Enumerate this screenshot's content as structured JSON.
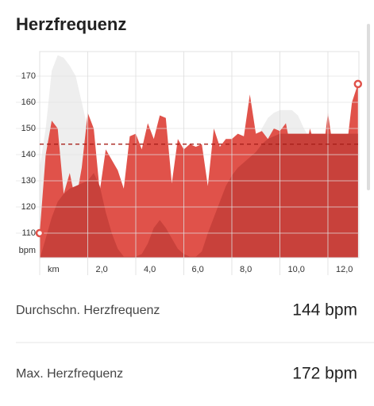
{
  "chart_data": {
    "type": "area",
    "title": "Herzfrequenz",
    "ylabel": "bpm",
    "x": [
      0,
      0.25,
      0.5,
      0.75,
      1,
      1.25,
      1.5,
      1.75,
      2,
      2.25,
      2.5,
      2.75,
      3,
      3.25,
      3.5,
      3.75,
      4,
      4.25,
      4.5,
      4.75,
      5,
      5.25,
      5.5,
      5.75,
      6,
      6.25,
      6.5,
      6.75,
      7,
      7.25,
      7.5,
      7.75,
      8,
      8.25,
      8.5,
      8.75,
      9,
      9.25,
      9.5,
      9.75,
      10,
      10.25,
      10.5,
      10.75,
      11,
      11.25,
      11.5,
      11.75,
      12,
      12.25,
      12.5,
      12.75,
      13,
      13.25
    ],
    "series": [
      {
        "color": "#eeeeee",
        "values": [
          135,
          150,
          172,
          178,
          177,
          174,
          170,
          160,
          150,
          140,
          125,
          115,
          108,
          104,
          102,
          102,
          102,
          102,
          102,
          102,
          102,
          102,
          102,
          102,
          102,
          102,
          102,
          104,
          108,
          112,
          116,
          120,
          125,
          130,
          135,
          140,
          145,
          150,
          154,
          156,
          157,
          157,
          157,
          155,
          150,
          146,
          140,
          136,
          132,
          131,
          130,
          130,
          130,
          130
        ]
      },
      {
        "color": "#e0524a",
        "values": [
          110,
          140,
          153,
          150,
          125,
          133,
          122,
          135,
          156,
          150,
          126,
          142,
          138,
          134,
          127,
          147,
          148,
          142,
          152,
          146,
          155,
          154,
          129,
          146,
          142,
          144,
          143,
          144,
          128,
          150,
          143,
          146,
          146,
          148,
          147,
          163,
          148,
          149,
          146,
          150,
          149,
          152,
          140,
          137,
          138,
          150,
          142,
          137,
          156,
          140,
          146,
          140,
          160,
          167
        ]
      },
      {
        "color": "#c8413b",
        "values": [
          100,
          108,
          116,
          122,
          125,
          127,
          128,
          129,
          130,
          133,
          128,
          118,
          110,
          104,
          101,
          101,
          101,
          102,
          106,
          112,
          115,
          112,
          108,
          104,
          102,
          101,
          101,
          103,
          110,
          116,
          122,
          128,
          132,
          135,
          137,
          139,
          141,
          144,
          146,
          147,
          148,
          148,
          148,
          148,
          148,
          148,
          148,
          148,
          148,
          148,
          148,
          148,
          148,
          148
        ]
      }
    ],
    "average": 144,
    "ylim": [
      100.6,
      179.4
    ],
    "yticks": [
      110,
      120,
      130,
      140,
      150,
      160,
      170
    ],
    "xlim": [
      0,
      13.29
    ],
    "xticks": [
      {
        "value": 0,
        "label": "km"
      },
      {
        "value": 2,
        "label": "2,0"
      },
      {
        "value": 4,
        "label": "4,0"
      },
      {
        "value": 6,
        "label": "6,0"
      },
      {
        "value": 8,
        "label": "8,0"
      },
      {
        "value": 10,
        "label": "10,0"
      },
      {
        "value": 12,
        "label": "12,0"
      }
    ]
  },
  "stats": [
    {
      "label": "Durchschn. Herzfrequenz",
      "value": "144 bpm"
    },
    {
      "label": "Max. Herzfrequenz",
      "value": "172 bpm"
    }
  ]
}
